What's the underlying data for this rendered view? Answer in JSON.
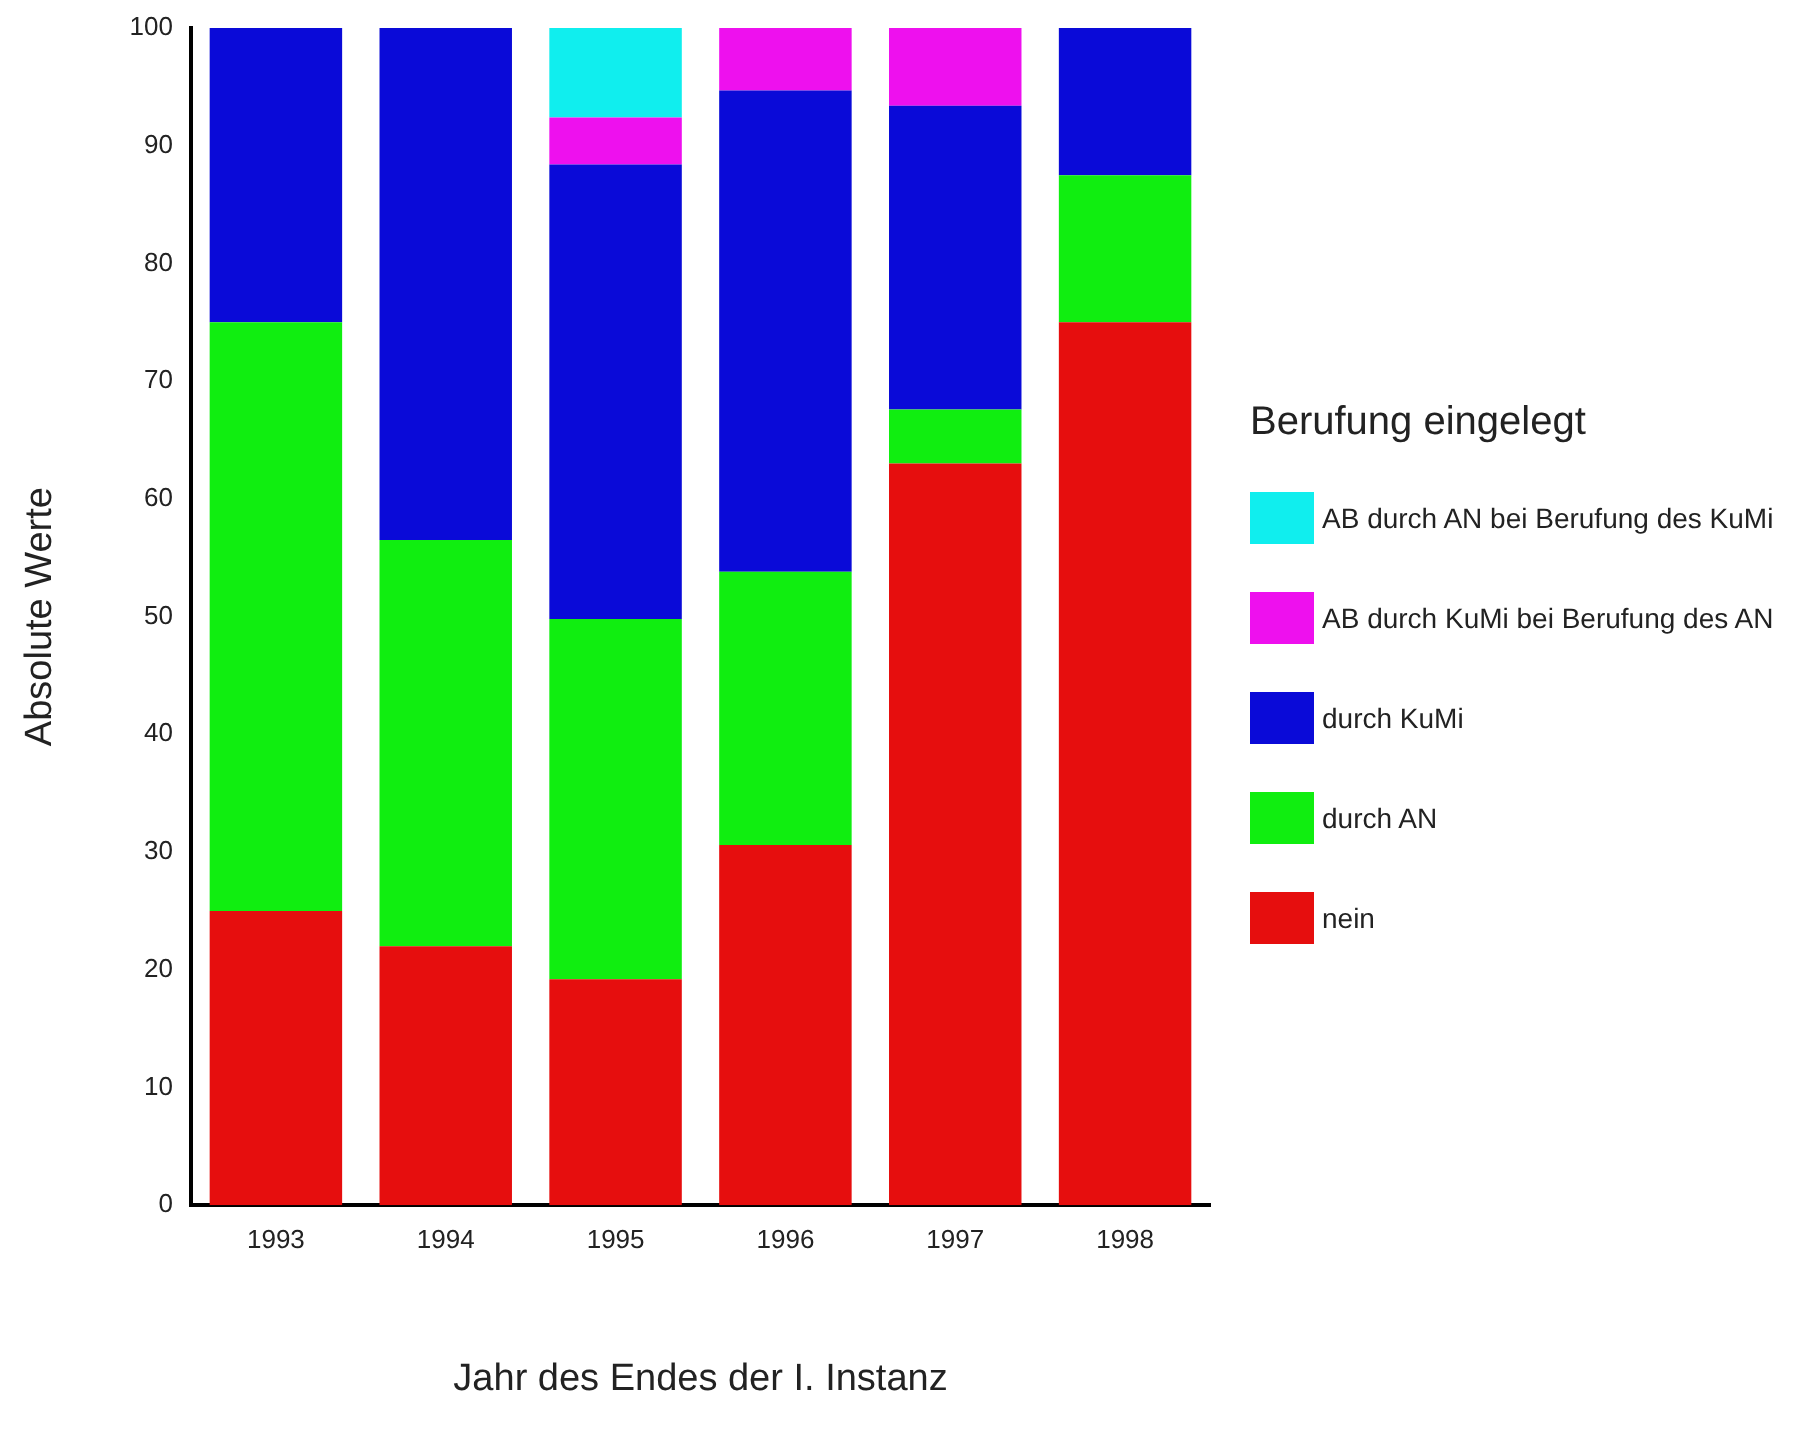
{
  "chart_data": {
    "type": "bar",
    "stacked": true,
    "xlabel": "Jahr des Endes der I. Instanz",
    "ylabel": "Absolute Werte",
    "legend_title": "Berufung eingelegt",
    "legend": "right",
    "grid": false,
    "categories": [
      "1993",
      "1994",
      "1995",
      "1996",
      "1997",
      "1998"
    ],
    "ylim": [
      0,
      100
    ],
    "yticks": [
      0,
      10,
      20,
      30,
      40,
      50,
      60,
      70,
      80,
      90,
      100
    ],
    "series": [
      {
        "name": "nein",
        "color": "#e60e0e",
        "values": [
          25,
          22,
          19.2,
          30.6,
          63,
          75
        ]
      },
      {
        "name": "durch AN",
        "color": "#10ee10",
        "values": [
          50,
          34.5,
          30.6,
          23.2,
          4.6,
          12.5
        ]
      },
      {
        "name": "durch KuMi",
        "color": "#0a0ad8",
        "values": [
          25,
          43.5,
          38.6,
          40.9,
          25.8,
          12.5
        ]
      },
      {
        "name": "AB durch KuMi bei Berufung des AN",
        "color": "#ee10ee",
        "values": [
          0,
          0,
          4,
          5.3,
          6.6,
          0
        ]
      },
      {
        "name": "AB durch AN bei Berufung des KuMi",
        "color": "#10eeee",
        "values": [
          0,
          0,
          7.6,
          0,
          0,
          0
        ]
      }
    ]
  }
}
